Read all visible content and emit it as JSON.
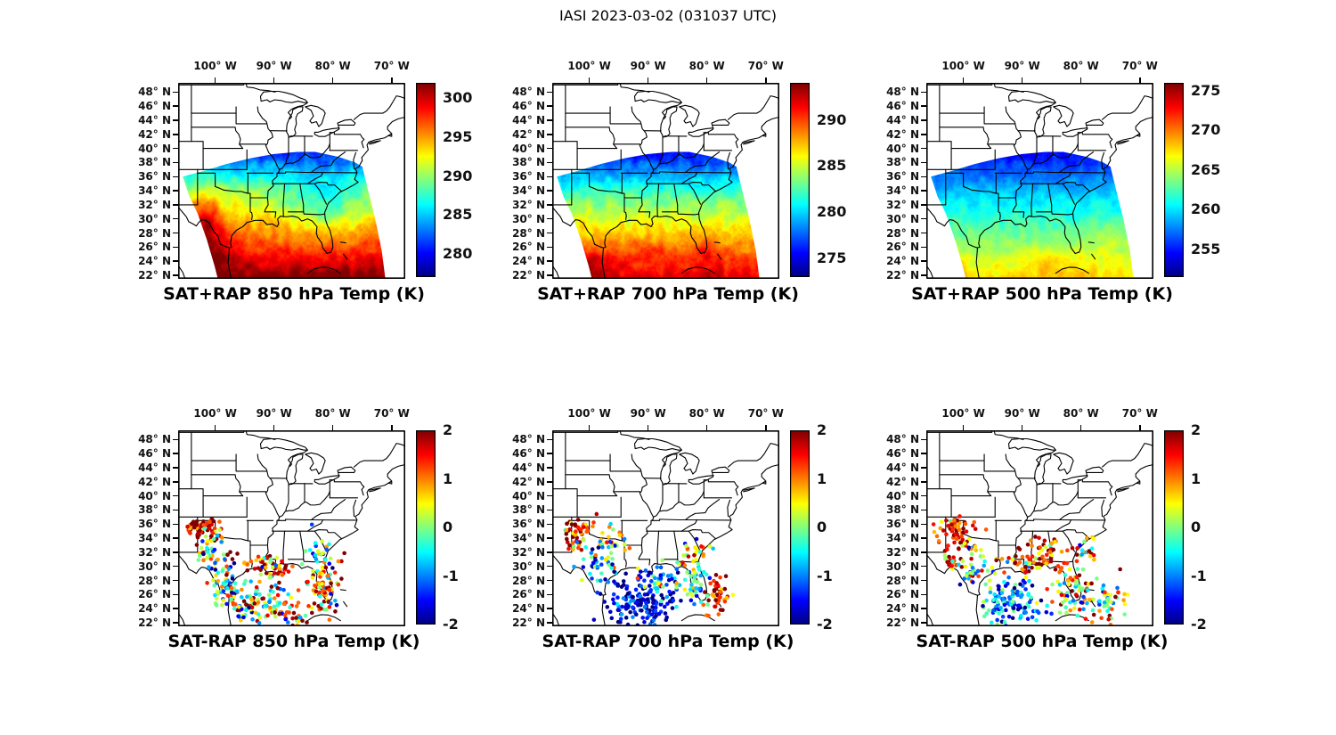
{
  "figure": {
    "title": "IASI 2023-03-02 (031037 UTC)"
  },
  "axes": {
    "extent": {
      "lon_min": -106.3,
      "lon_max": -67.7,
      "lat_min": 21.5,
      "lat_max": 49.3
    },
    "lon_tick_values": [
      -100,
      -90,
      -80,
      -70
    ],
    "lon_tick_labels": [
      "100° W",
      "90° W",
      "80° W",
      "70° W"
    ],
    "lat_tick_values": [
      48,
      46,
      44,
      42,
      40,
      38,
      36,
      34,
      32,
      30,
      28,
      26,
      24,
      22
    ],
    "lat_tick_labels": [
      "48° N",
      "46° N",
      "44° N",
      "42° N",
      "40° N",
      "38° N",
      "36° N",
      "34° N",
      "32° N",
      "30° N",
      "28° N",
      "26° N",
      "24° N",
      "22° N"
    ]
  },
  "chart_data": [
    {
      "id": "sat-plus-rap-850",
      "type": "heatmap",
      "title": "SAT+RAP 850 hPa Temp (K)",
      "units": "K",
      "colormap": "jet",
      "colorbar": {
        "min": 277,
        "max": 302,
        "ticks": [
          300,
          295,
          290,
          285,
          280
        ]
      },
      "field": {
        "lat_profile": [
          [
            21,
            303
          ],
          [
            24,
            299.5
          ],
          [
            27,
            296.5
          ],
          [
            30,
            294
          ],
          [
            32,
            292
          ],
          [
            34,
            290
          ],
          [
            36,
            287
          ],
          [
            38,
            283.5
          ],
          [
            40,
            280.5
          ],
          [
            42,
            278.5
          ]
        ],
        "anomalies": [
          {
            "lon": -102,
            "lat": 29,
            "amp": 6,
            "slon": 3.5,
            "slat": 4.5
          },
          {
            "lon": -99,
            "lat": 24.5,
            "amp": 2,
            "slon": 3,
            "slat": 2
          },
          {
            "lon": -81.5,
            "lat": 32,
            "amp": -4,
            "slon": 7,
            "slat": 4
          }
        ],
        "noise_amp": 1.2
      }
    },
    {
      "id": "sat-plus-rap-700",
      "type": "heatmap",
      "title": "SAT+RAP 700 hPa Temp (K)",
      "units": "K",
      "colormap": "jet",
      "colorbar": {
        "min": 273,
        "max": 294,
        "ticks": [
          290,
          285,
          280,
          275
        ]
      },
      "field": {
        "lat_profile": [
          [
            21,
            292.5
          ],
          [
            24,
            290
          ],
          [
            27,
            287.5
          ],
          [
            29,
            286.2
          ],
          [
            31,
            284.8
          ],
          [
            33,
            283
          ],
          [
            35,
            280.8
          ],
          [
            37,
            278.5
          ],
          [
            39,
            276.3
          ],
          [
            42,
            274
          ]
        ],
        "anomalies": [
          {
            "lon": -99.5,
            "lat": 23.5,
            "amp": 2.5,
            "slon": 4,
            "slat": 2.5
          },
          {
            "lon": -80,
            "lat": 25.5,
            "amp": 2,
            "slon": 3.5,
            "slat": 2.5
          },
          {
            "lon": -90,
            "lat": 25.5,
            "amp": 1.5,
            "slon": 5,
            "slat": 2
          }
        ],
        "noise_amp": 1.0
      }
    },
    {
      "id": "sat-plus-rap-500",
      "type": "heatmap",
      "title": "SAT+RAP 500 hPa Temp (K)",
      "units": "K",
      "colormap": "jet",
      "colorbar": {
        "min": 251.5,
        "max": 276,
        "ticks": [
          275,
          270,
          265,
          260,
          255
        ]
      },
      "field": {
        "lat_profile": [
          [
            21,
            268
          ],
          [
            24,
            265.8
          ],
          [
            27,
            263.8
          ],
          [
            30,
            262
          ],
          [
            33,
            260
          ],
          [
            36,
            257.5
          ],
          [
            39,
            255
          ],
          [
            42,
            253.2
          ]
        ],
        "anomalies": [
          {
            "lon": -102.5,
            "lat": 22.5,
            "amp": 5,
            "slon": 2.5,
            "slat": 2
          },
          {
            "lon": -85,
            "lat": 24,
            "amp": 2,
            "slon": 6,
            "slat": 2.2
          },
          {
            "lon": -76,
            "lat": 27,
            "amp": 1.5,
            "slon": 3,
            "slat": 3
          }
        ],
        "noise_amp": 0.9
      }
    },
    {
      "id": "sat-minus-rap-850",
      "type": "scatter",
      "title": "SAT-RAP 850 hPa Temp (K)",
      "units": "K",
      "colormap": "jet",
      "colorbar": {
        "min": -2,
        "max": 2,
        "ticks": [
          2,
          1,
          0,
          -1,
          -2
        ]
      },
      "clusters": [
        {
          "lon": -102.5,
          "lat": 35.3,
          "slon": 1.6,
          "slat": 1.3,
          "n": 85,
          "bias": 1.5,
          "sd": 0.7
        },
        {
          "lon": -100.8,
          "lat": 31.8,
          "slon": 2.0,
          "slat": 1.6,
          "n": 45,
          "bias": 0.2,
          "sd": 1.3
        },
        {
          "lon": -98.5,
          "lat": 27.3,
          "slon": 1.5,
          "slat": 1.8,
          "n": 55,
          "bias": -0.5,
          "sd": 1.0
        },
        {
          "lon": -90.8,
          "lat": 29.8,
          "slon": 2.2,
          "slat": 0.9,
          "n": 55,
          "bias": 0.9,
          "sd": 0.9
        },
        {
          "lon": -92.5,
          "lat": 24.8,
          "slon": 2.8,
          "slat": 1.5,
          "n": 110,
          "bias": 0.1,
          "sd": 1.2
        },
        {
          "lon": -81.5,
          "lat": 27.2,
          "slon": 1.5,
          "slat": 2.0,
          "n": 85,
          "bias": 0.9,
          "sd": 1.0
        },
        {
          "lon": -81.8,
          "lat": 31.8,
          "slon": 1.5,
          "slat": 1.2,
          "n": 25,
          "bias": -0.3,
          "sd": 0.8
        },
        {
          "lon": -86.5,
          "lat": 23.0,
          "slon": 2.0,
          "slat": 1.0,
          "n": 30,
          "bias": 0.6,
          "sd": 1.4
        }
      ]
    },
    {
      "id": "sat-minus-rap-700",
      "type": "scatter",
      "title": "SAT-RAP 700 hPa Temp (K)",
      "units": "K",
      "colormap": "jet",
      "colorbar": {
        "min": -2,
        "max": 2,
        "ticks": [
          2,
          1,
          0,
          -1,
          -2
        ]
      },
      "clusters": [
        {
          "lon": -101.8,
          "lat": 35.0,
          "slon": 1.6,
          "slat": 1.3,
          "n": 65,
          "bias": 1.2,
          "sd": 0.8
        },
        {
          "lon": -98.8,
          "lat": 30.5,
          "slon": 1.8,
          "slat": 1.6,
          "n": 45,
          "bias": -0.7,
          "sd": 0.9
        },
        {
          "lon": -91.5,
          "lat": 24.5,
          "slon": 3.0,
          "slat": 1.6,
          "n": 150,
          "bias": -1.7,
          "sd": 0.5
        },
        {
          "lon": -88.0,
          "lat": 28.0,
          "slon": 2.2,
          "slat": 1.3,
          "n": 60,
          "bias": -0.9,
          "sd": 0.8
        },
        {
          "lon": -78.3,
          "lat": 26.3,
          "slon": 1.2,
          "slat": 1.5,
          "n": 45,
          "bias": 1.6,
          "sd": 0.6
        },
        {
          "lon": -82.0,
          "lat": 27.5,
          "slon": 1.2,
          "slat": 1.8,
          "n": 40,
          "bias": -0.2,
          "sd": 0.9
        },
        {
          "lon": -82.5,
          "lat": 31.5,
          "slon": 1.8,
          "slat": 1.2,
          "n": 30,
          "bias": 0.3,
          "sd": 0.9
        },
        {
          "lon": -96.0,
          "lat": 33.5,
          "slon": 1.5,
          "slat": 1.2,
          "n": 25,
          "bias": 0.4,
          "sd": 1.1
        }
      ]
    },
    {
      "id": "sat-minus-rap-500",
      "type": "scatter",
      "title": "SAT-RAP 500 hPa Temp (K)",
      "units": "K",
      "colormap": "jet",
      "colorbar": {
        "min": -2,
        "max": 2,
        "ticks": [
          2,
          1,
          0,
          -1,
          -2
        ]
      },
      "clusters": [
        {
          "lon": -101.5,
          "lat": 35.3,
          "slon": 1.7,
          "slat": 1.4,
          "n": 85,
          "bias": 1.5,
          "sd": 0.6
        },
        {
          "lon": -102.2,
          "lat": 30.8,
          "slon": 1.4,
          "slat": 1.3,
          "n": 35,
          "bias": 1.2,
          "sd": 0.7
        },
        {
          "lon": -98.0,
          "lat": 30.0,
          "slon": 1.6,
          "slat": 1.5,
          "n": 45,
          "bias": -0.3,
          "sd": 1.0
        },
        {
          "lon": -92.0,
          "lat": 24.8,
          "slon": 2.6,
          "slat": 1.6,
          "n": 125,
          "bias": -1.1,
          "sd": 0.8
        },
        {
          "lon": -89.5,
          "lat": 30.5,
          "slon": 2.0,
          "slat": 1.0,
          "n": 45,
          "bias": 1.2,
          "sd": 0.8
        },
        {
          "lon": -85.8,
          "lat": 32.5,
          "slon": 1.3,
          "slat": 1.0,
          "n": 30,
          "bias": 1.3,
          "sd": 0.7
        },
        {
          "lon": -81.0,
          "lat": 27.0,
          "slon": 2.0,
          "slat": 2.0,
          "n": 80,
          "bias": 0.5,
          "sd": 1.2
        },
        {
          "lon": -79.5,
          "lat": 32.2,
          "slon": 1.2,
          "slat": 1.0,
          "n": 20,
          "bias": 0.8,
          "sd": 0.9
        },
        {
          "lon": -75.5,
          "lat": 24.5,
          "slon": 1.8,
          "slat": 1.6,
          "n": 45,
          "bias": 0.3,
          "sd": 1.0
        }
      ]
    }
  ]
}
